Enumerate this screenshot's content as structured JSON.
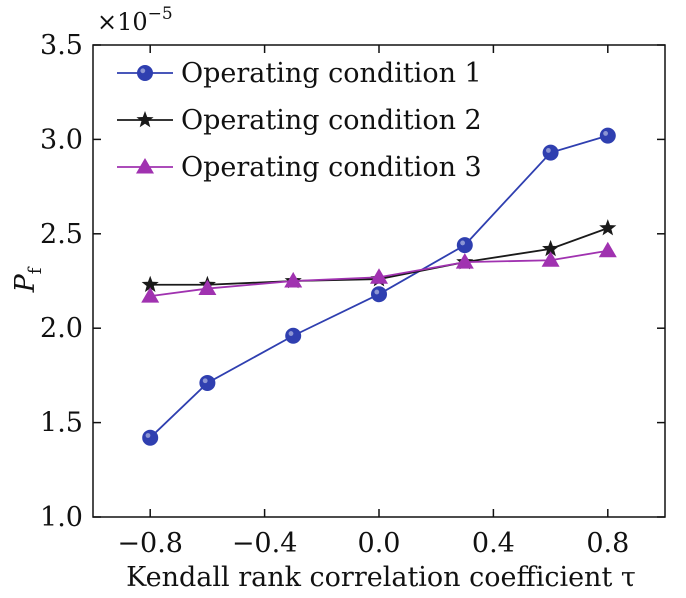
{
  "chart_data": {
    "type": "line",
    "title": "",
    "xlabel": "Kendall rank correlation coefficient τ",
    "ylabel_main": "P",
    "ylabel_sub": "f",
    "y_multiplier_base": "×10",
    "y_multiplier_exp": "−5",
    "xlim": [
      -1.0,
      1.0
    ],
    "ylim": [
      1.0,
      3.5
    ],
    "x_ticks": [
      -0.8,
      -0.4,
      0.0,
      0.4,
      0.8
    ],
    "x_tick_labels": [
      "−0.8",
      "−0.4",
      "0.0",
      "0.4",
      "0.8"
    ],
    "y_ticks": [
      1.0,
      1.5,
      2.0,
      2.5,
      3.0,
      3.5
    ],
    "y_tick_labels": [
      "1.0",
      "1.5",
      "2.0",
      "2.5",
      "3.0",
      "3.5"
    ],
    "grid": false,
    "legend_position": "top-left",
    "x": [
      -0.8,
      -0.6,
      -0.3,
      0.0,
      0.3,
      0.6,
      0.8
    ],
    "series": [
      {
        "name": "Operating condition 1",
        "marker": "circle",
        "color": "#2f3fb0",
        "values": [
          1.42,
          1.71,
          1.96,
          2.18,
          2.44,
          2.93,
          3.02
        ]
      },
      {
        "name": "Operating condition 2",
        "marker": "star",
        "color": "#1a1a1a",
        "values": [
          2.23,
          2.23,
          2.25,
          2.26,
          2.35,
          2.42,
          2.53
        ]
      },
      {
        "name": "Operating condition 3",
        "marker": "triangle",
        "color": "#a032b0",
        "values": [
          2.17,
          2.21,
          2.25,
          2.27,
          2.35,
          2.36,
          2.41
        ]
      }
    ]
  }
}
